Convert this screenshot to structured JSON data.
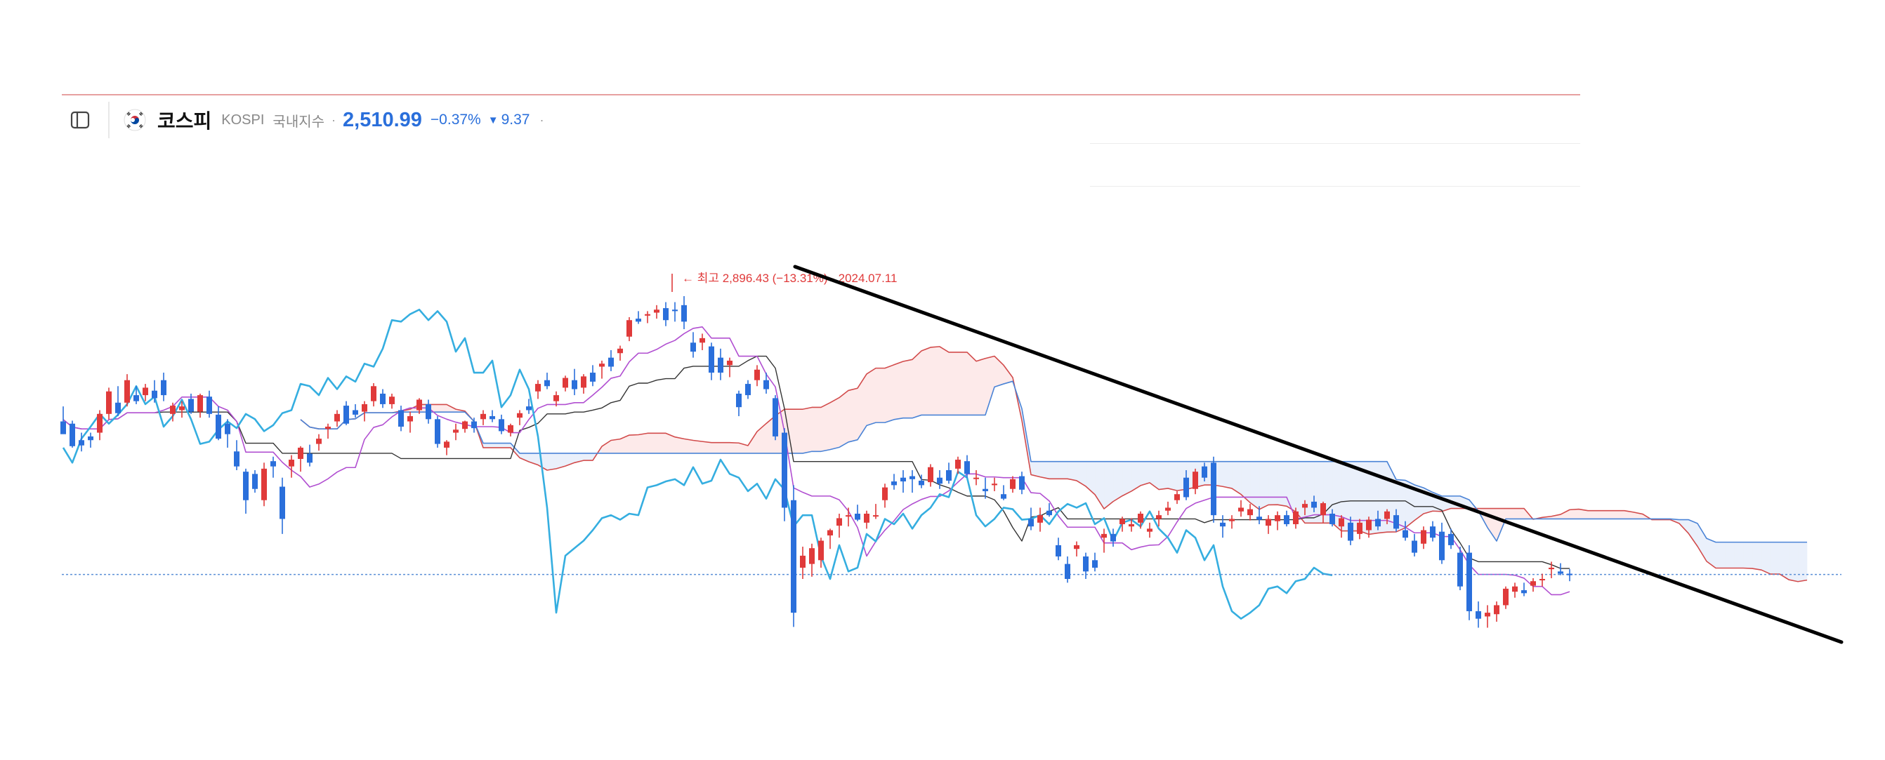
{
  "header": {
    "panel_icon": "sidebar-panel-icon",
    "flag_icon": "korea-flag-icon",
    "name": "코스피",
    "code": "KOSPI",
    "market": "국내지수",
    "separator": "·",
    "price": "2,510.99",
    "change_pct": "−0.37%",
    "change_arrow": "▼",
    "change_abs": "9.37",
    "trailing": "·"
  },
  "colors": {
    "up": "#e03a3a",
    "down": "#2a6fdb",
    "conversion_line": "#b14fd1",
    "base_line": "#333333",
    "lagging_span": "#35aee0",
    "span_a": "#d24b4b",
    "span_b": "#4a83d6",
    "cloud_bull": "#fdeaea",
    "cloud_bear": "#eaf0fb",
    "current_price_line": "#5a8fd6",
    "trend_line": "#000000"
  },
  "chart_data": {
    "type": "candlestick",
    "indicator": "ichimoku",
    "annotation": {
      "label": "← 최고 2,896.43 (−13.31%) · 2024.07.11",
      "value": 2896.43
    },
    "current_price": 2510.99,
    "ylim": [
      2360,
      2940
    ],
    "candles": [
      [
        2715,
        2735,
        2700,
        2698
      ],
      [
        2712,
        2716,
        2680,
        2682
      ],
      [
        2690,
        2700,
        2675,
        2683
      ],
      [
        2695,
        2700,
        2680,
        2690
      ],
      [
        2700,
        2730,
        2690,
        2725
      ],
      [
        2725,
        2760,
        2718,
        2755
      ],
      [
        2740,
        2762,
        2722,
        2726
      ],
      [
        2740,
        2778,
        2735,
        2770
      ],
      [
        2750,
        2762,
        2738,
        2742
      ],
      [
        2750,
        2765,
        2742,
        2760
      ],
      [
        2756,
        2770,
        2740,
        2746
      ],
      [
        2770,
        2780,
        2742,
        2750
      ],
      [
        2725,
        2740,
        2715,
        2736
      ],
      [
        2730,
        2742,
        2720,
        2735
      ],
      [
        2745,
        2752,
        2725,
        2728
      ],
      [
        2728,
        2752,
        2720,
        2750
      ],
      [
        2748,
        2756,
        2720,
        2725
      ],
      [
        2724,
        2735,
        2690,
        2692
      ],
      [
        2712,
        2718,
        2680,
        2698
      ],
      [
        2675,
        2690,
        2650,
        2655
      ],
      [
        2648,
        2652,
        2592,
        2610
      ],
      [
        2645,
        2650,
        2620,
        2625
      ],
      [
        2610,
        2660,
        2602,
        2652
      ],
      [
        2662,
        2668,
        2640,
        2655
      ],
      [
        2628,
        2640,
        2565,
        2585
      ],
      [
        2655,
        2670,
        2640,
        2664
      ],
      [
        2665,
        2682,
        2648,
        2680
      ],
      [
        2672,
        2684,
        2655,
        2660
      ],
      [
        2685,
        2698,
        2676,
        2692
      ],
      [
        2705,
        2712,
        2692,
        2708
      ],
      [
        2715,
        2730,
        2708,
        2725
      ],
      [
        2736,
        2742,
        2710,
        2712
      ],
      [
        2730,
        2738,
        2720,
        2724
      ],
      [
        2728,
        2742,
        2715,
        2738
      ],
      [
        2742,
        2766,
        2735,
        2762
      ],
      [
        2752,
        2758,
        2733,
        2738
      ],
      [
        2738,
        2752,
        2732,
        2748
      ],
      [
        2730,
        2736,
        2702,
        2708
      ],
      [
        2715,
        2728,
        2700,
        2722
      ],
      [
        2730,
        2746,
        2725,
        2744
      ],
      [
        2738,
        2744,
        2712,
        2718
      ],
      [
        2718,
        2722,
        2680,
        2685
      ],
      [
        2680,
        2690,
        2670,
        2688
      ],
      [
        2700,
        2712,
        2690,
        2704
      ],
      [
        2705,
        2716,
        2700,
        2715
      ],
      [
        2715,
        2720,
        2700,
        2706
      ],
      [
        2718,
        2730,
        2710,
        2725
      ],
      [
        2722,
        2730,
        2714,
        2718
      ],
      [
        2718,
        2724,
        2698,
        2702
      ],
      [
        2700,
        2712,
        2695,
        2710
      ],
      [
        2720,
        2730,
        2710,
        2726
      ],
      [
        2735,
        2745,
        2725,
        2730
      ],
      [
        2755,
        2770,
        2745,
        2765
      ],
      [
        2770,
        2780,
        2758,
        2762
      ],
      [
        2742,
        2755,
        2735,
        2750
      ],
      [
        2760,
        2776,
        2755,
        2773
      ],
      [
        2770,
        2785,
        2750,
        2758
      ],
      [
        2760,
        2778,
        2752,
        2775
      ],
      [
        2780,
        2790,
        2762,
        2768
      ],
      [
        2788,
        2796,
        2772,
        2792
      ],
      [
        2800,
        2810,
        2782,
        2788
      ],
      [
        2806,
        2816,
        2796,
        2812
      ],
      [
        2828,
        2854,
        2822,
        2850
      ],
      [
        2852,
        2862,
        2845,
        2848
      ],
      [
        2856,
        2862,
        2846,
        2858
      ],
      [
        2860,
        2870,
        2852,
        2864
      ],
      [
        2866,
        2874,
        2842,
        2850
      ],
      [
        2864,
        2874,
        2848,
        2862
      ],
      [
        2870,
        2882,
        2838,
        2848
      ],
      [
        2820,
        2834,
        2800,
        2808
      ],
      [
        2820,
        2832,
        2810,
        2826
      ],
      [
        2815,
        2820,
        2770,
        2780
      ],
      [
        2800,
        2812,
        2770,
        2780
      ],
      [
        2790,
        2800,
        2774,
        2796
      ],
      [
        2752,
        2756,
        2722,
        2734
      ],
      [
        2765,
        2770,
        2745,
        2750
      ],
      [
        2770,
        2790,
        2762,
        2784
      ],
      [
        2770,
        2780,
        2752,
        2758
      ],
      [
        2746,
        2750,
        2690,
        2695
      ],
      [
        2700,
        2706,
        2582,
        2600
      ],
      [
        2610,
        2630,
        2441,
        2460
      ],
      [
        2520,
        2548,
        2505,
        2536
      ],
      [
        2525,
        2552,
        2508,
        2546
      ],
      [
        2530,
        2560,
        2520,
        2556
      ],
      [
        2563,
        2572,
        2545,
        2570
      ],
      [
        2576,
        2592,
        2560,
        2586
      ],
      [
        2590,
        2600,
        2575,
        2590
      ],
      [
        2592,
        2604,
        2582,
        2584
      ],
      [
        2580,
        2596,
        2572,
        2592
      ],
      [
        2590,
        2605,
        2585,
        2590
      ],
      [
        2610,
        2632,
        2600,
        2627
      ],
      [
        2635,
        2645,
        2624,
        2630
      ],
      [
        2640,
        2650,
        2620,
        2635
      ],
      [
        2642,
        2650,
        2620,
        2638
      ],
      [
        2636,
        2644,
        2626,
        2630
      ],
      [
        2634,
        2658,
        2628,
        2654
      ],
      [
        2640,
        2650,
        2625,
        2632
      ],
      [
        2650,
        2660,
        2632,
        2636
      ],
      [
        2652,
        2668,
        2645,
        2664
      ],
      [
        2662,
        2670,
        2640,
        2645
      ],
      [
        2640,
        2650,
        2630,
        2640
      ],
      [
        2625,
        2640,
        2612,
        2622
      ],
      [
        2630,
        2640,
        2622,
        2632
      ],
      [
        2618,
        2630,
        2610,
        2612
      ],
      [
        2625,
        2642,
        2620,
        2638
      ],
      [
        2642,
        2648,
        2618,
        2624
      ],
      [
        2585,
        2600,
        2570,
        2575
      ],
      [
        2580,
        2600,
        2568,
        2590
      ],
      [
        2596,
        2606,
        2588,
        2590
      ],
      [
        2550,
        2560,
        2530,
        2535
      ],
      [
        2525,
        2535,
        2500,
        2505
      ],
      [
        2545,
        2555,
        2535,
        2550
      ],
      [
        2535,
        2540,
        2505,
        2515
      ],
      [
        2530,
        2540,
        2515,
        2520
      ],
      [
        2560,
        2572,
        2540,
        2565
      ],
      [
        2565,
        2572,
        2548,
        2555
      ],
      [
        2578,
        2588,
        2568,
        2585
      ],
      [
        2575,
        2586,
        2568,
        2578
      ],
      [
        2580,
        2595,
        2572,
        2592
      ],
      [
        2568,
        2580,
        2560,
        2572
      ],
      [
        2585,
        2596,
        2575,
        2590
      ],
      [
        2596,
        2608,
        2590,
        2600
      ],
      [
        2610,
        2622,
        2605,
        2618
      ],
      [
        2640,
        2650,
        2610,
        2614
      ],
      [
        2625,
        2652,
        2618,
        2648
      ],
      [
        2655,
        2660,
        2635,
        2640
      ],
      [
        2660,
        2668,
        2580,
        2590
      ],
      [
        2580,
        2590,
        2560,
        2575
      ],
      [
        2582,
        2590,
        2572,
        2585
      ],
      [
        2595,
        2610,
        2588,
        2600
      ],
      [
        2590,
        2605,
        2583,
        2598
      ],
      [
        2588,
        2602,
        2578,
        2584
      ],
      [
        2576,
        2590,
        2565,
        2585
      ],
      [
        2582,
        2595,
        2570,
        2590
      ],
      [
        2590,
        2596,
        2575,
        2578
      ],
      [
        2578,
        2600,
        2572,
        2595
      ],
      [
        2600,
        2610,
        2590,
        2605
      ],
      [
        2608,
        2616,
        2594,
        2600
      ],
      [
        2590,
        2608,
        2580,
        2606
      ],
      [
        2592,
        2598,
        2575,
        2578
      ],
      [
        2575,
        2590,
        2560,
        2586
      ],
      [
        2580,
        2588,
        2550,
        2556
      ],
      [
        2565,
        2585,
        2558,
        2580
      ],
      [
        2570,
        2588,
        2560,
        2584
      ],
      [
        2585,
        2596,
        2570,
        2575
      ],
      [
        2585,
        2598,
        2578,
        2595
      ],
      [
        2590,
        2598,
        2568,
        2572
      ],
      [
        2570,
        2582,
        2556,
        2560
      ],
      [
        2556,
        2565,
        2535,
        2540
      ],
      [
        2552,
        2575,
        2545,
        2570
      ],
      [
        2575,
        2582,
        2555,
        2560
      ],
      [
        2568,
        2580,
        2525,
        2530
      ],
      [
        2565,
        2572,
        2545,
        2550
      ],
      [
        2540,
        2548,
        2490,
        2495
      ],
      [
        2540,
        2550,
        2450,
        2462
      ],
      [
        2462,
        2475,
        2440,
        2452
      ],
      [
        2455,
        2470,
        2440,
        2460
      ],
      [
        2458,
        2475,
        2448,
        2470
      ],
      [
        2470,
        2495,
        2465,
        2492
      ],
      [
        2488,
        2500,
        2480,
        2495
      ],
      [
        2490,
        2500,
        2482,
        2486
      ],
      [
        2496,
        2506,
        2488,
        2502
      ],
      [
        2504,
        2512,
        2495,
        2505
      ],
      [
        2518,
        2528,
        2506,
        2520
      ],
      [
        2515,
        2526,
        2510,
        2512
      ],
      [
        2512,
        2518,
        2502,
        2510
      ]
    ],
    "trend_line": [
      [
        2897,
        12
      ],
      [
        2490,
        230
      ]
    ]
  }
}
